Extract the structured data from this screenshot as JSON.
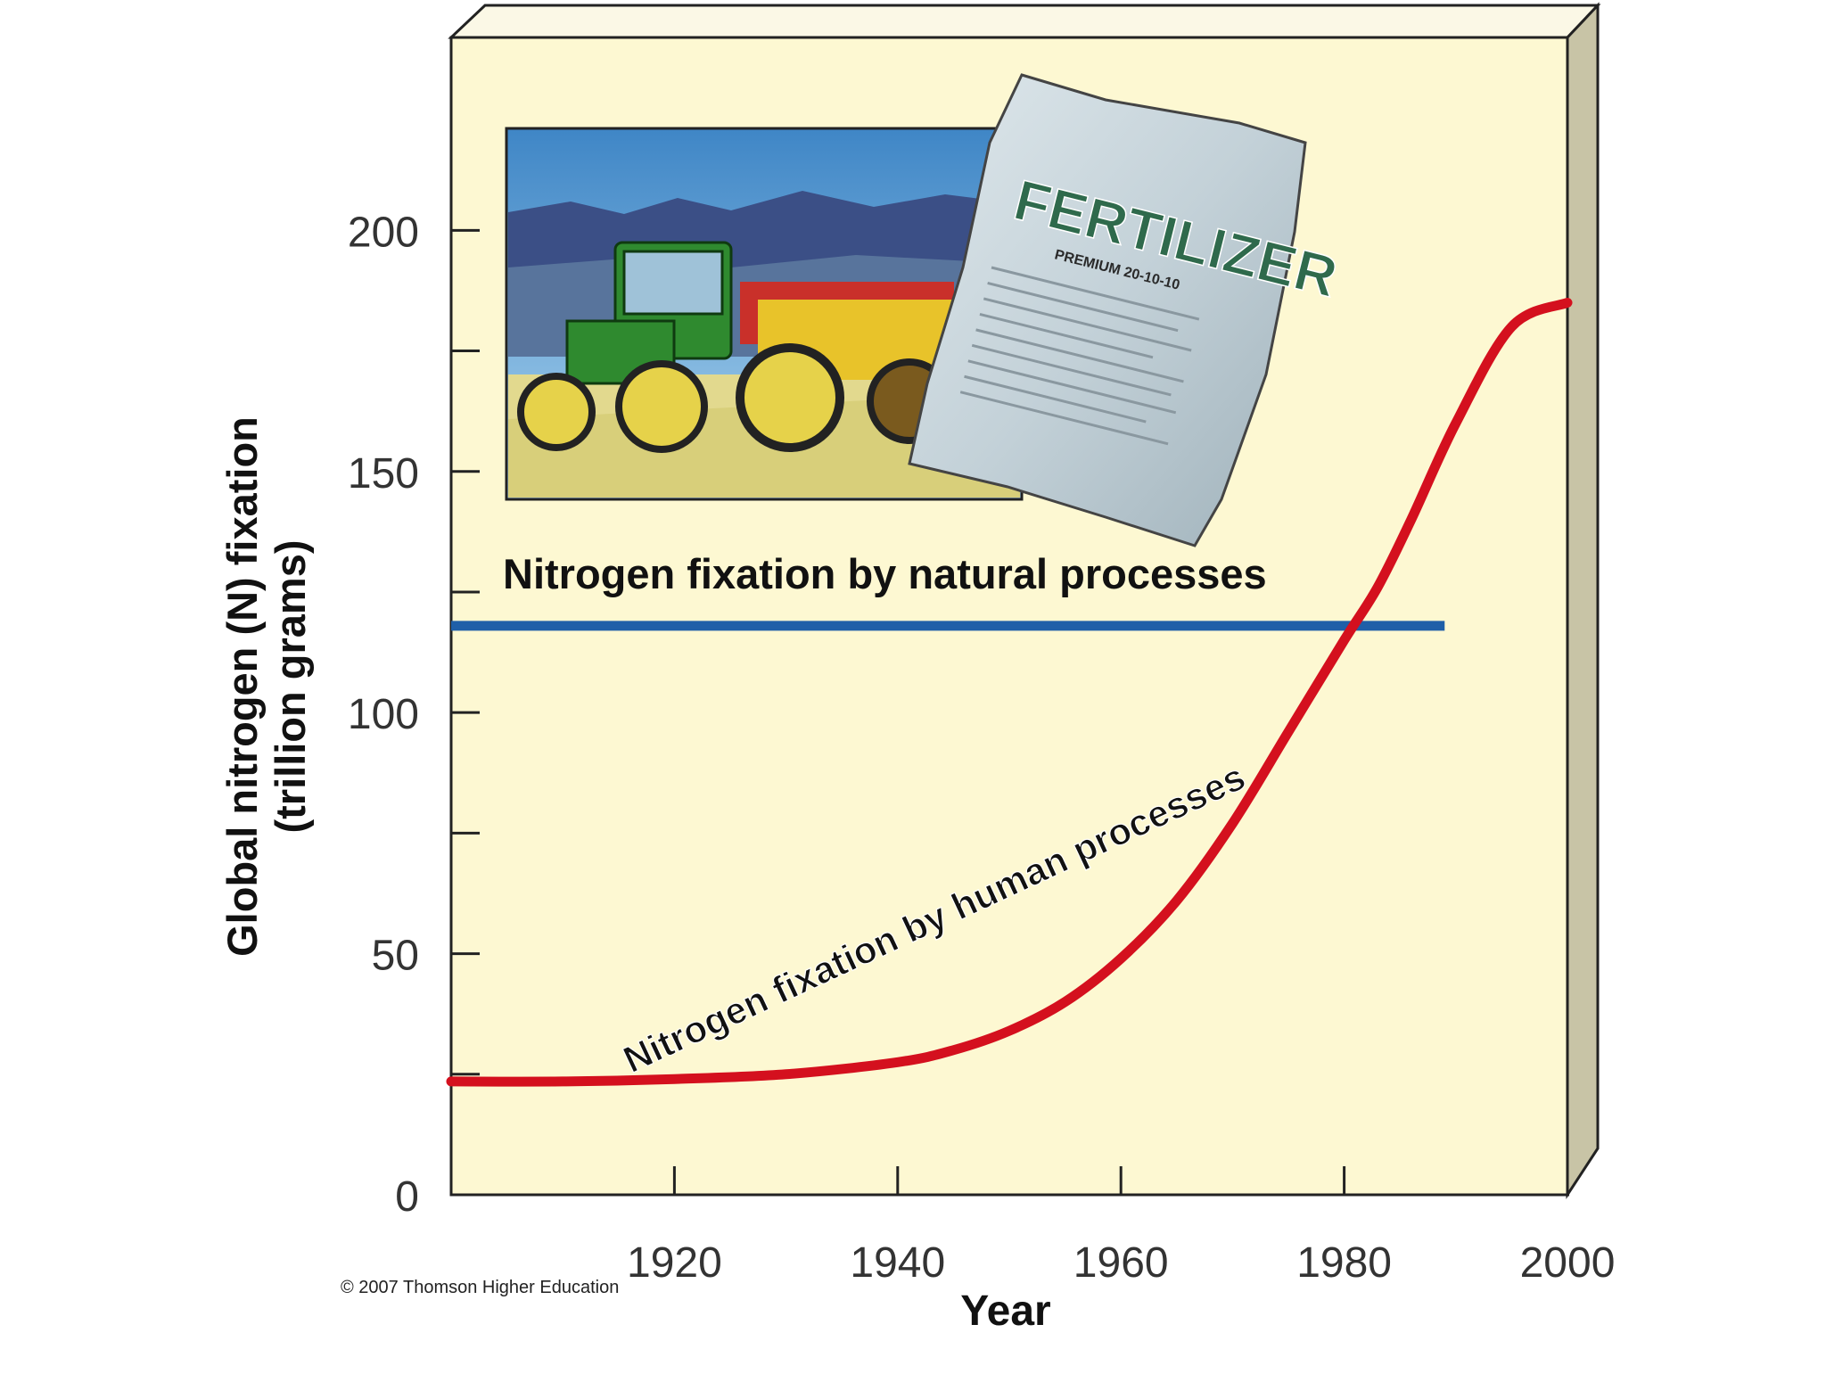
{
  "chart_data": {
    "type": "line",
    "title": "",
    "xlabel": "Year",
    "ylabel_line1": "Global nitrogen (N) fixation",
    "ylabel_line2": "(trillion grams)",
    "xlim": [
      1900,
      2000
    ],
    "ylim": [
      0,
      240
    ],
    "x_ticks": [
      1920,
      1940,
      1960,
      1980,
      2000
    ],
    "y_ticks": [
      0,
      50,
      100,
      150,
      200
    ],
    "y_minor_ticks": [
      25,
      75,
      125,
      175
    ],
    "grid": false,
    "legend": "none",
    "series": [
      {
        "name": "Nitrogen fixation by natural processes",
        "color": "#1f5fa8",
        "x": [
          1900,
          1989
        ],
        "y": [
          118,
          118
        ]
      },
      {
        "name": "Nitrogen fixation by human processes",
        "color": "#d4101e",
        "x": [
          1900,
          1910,
          1920,
          1930,
          1940,
          1945,
          1950,
          1955,
          1960,
          1965,
          1970,
          1975,
          1980,
          1983,
          1986,
          1990,
          1995,
          2000
        ],
        "y": [
          23.5,
          23.5,
          24,
          25,
          27.5,
          30,
          34,
          40,
          49,
          61,
          77,
          96,
          115,
          126,
          140,
          160,
          180,
          185
        ]
      }
    ],
    "annotations": {
      "natural_label": "Nitrogen fixation by natural processes",
      "human_label": "Nitrogen fixation by human processes"
    },
    "illustration": {
      "bag_text": "FERTILIZER",
      "bag_subtext": "PREMIUM 20-10-10"
    },
    "copyright": "© 2007 Thomson Higher Education"
  },
  "colors": {
    "panel_fill": "#fdf8d2",
    "panel_side": "#c8c4a6",
    "axis": "#222222",
    "bag": "#c9d6dc",
    "bag_text": "#2f6a4c"
  }
}
